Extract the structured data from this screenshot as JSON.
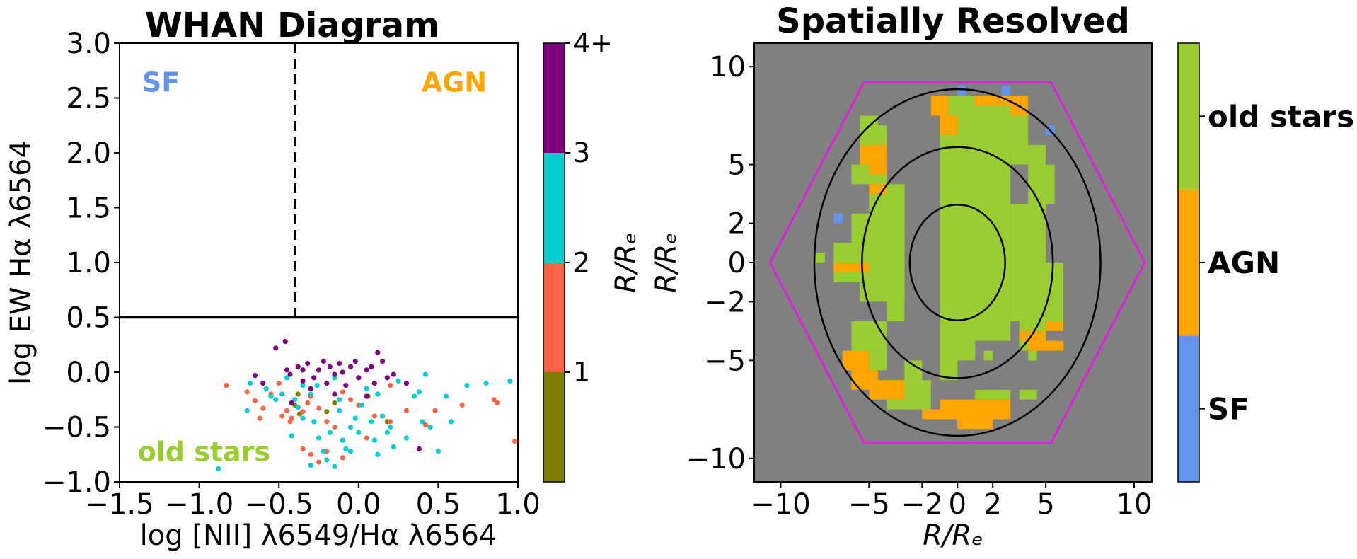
{
  "chart_data": [
    {
      "type": "scatter",
      "title": "WHAN Diagram",
      "xlabel": "log [NII] λ6549/Hα λ6564",
      "ylabel": "log EW Hα λ6564",
      "xlim": [
        -1.5,
        1.0
      ],
      "ylim": [
        -1.0,
        3.0
      ],
      "xticks": [
        -1.5,
        -1.0,
        -0.5,
        0.0,
        0.5,
        1.0
      ],
      "xtick_labels": [
        "−1.5",
        "−1.0",
        "−0.5",
        "0.0",
        "0.5",
        "1.0"
      ],
      "yticks": [
        -1.0,
        -0.5,
        0.0,
        0.5,
        1.0,
        1.5,
        2.0,
        2.5,
        3.0
      ],
      "ytick_labels": [
        "−1.0",
        "−0.5",
        "0.0",
        "0.5",
        "1.0",
        "1.5",
        "2.0",
        "2.5",
        "3.0"
      ],
      "dividers": {
        "vertical_x": -0.4,
        "horizontal_y": 0.5
      },
      "region_labels": [
        {
          "text": "SF",
          "x": -1.24,
          "y": 2.65,
          "color": "#6495ED"
        },
        {
          "text": "AGN",
          "x": 0.6,
          "y": 2.65,
          "color": "#FFA500"
        },
        {
          "text": "old stars",
          "x": -0.97,
          "y": -0.72,
          "color": "#9ACD32"
        }
      ],
      "colorbar": {
        "label": "R/Rₑ",
        "ticks": [
          "1",
          "2",
          "3",
          "4+"
        ],
        "bins": [
          {
            "range": "0-1",
            "color": "#808000"
          },
          {
            "range": "1-2",
            "color": "#FF6347"
          },
          {
            "range": "2-3",
            "color": "#00CED1"
          },
          {
            "range": "3-4+",
            "color": "#800080"
          }
        ]
      },
      "series": [
        {
          "name": "0-1 R/Re",
          "color": "#808000",
          "points": [
            [
              -0.37,
              -0.38
            ],
            [
              -0.4,
              -0.3
            ],
            [
              -0.15,
              -0.28
            ],
            [
              0.06,
              -0.22
            ],
            [
              -0.2,
              -0.36
            ],
            [
              0.18,
              -0.45
            ],
            [
              -0.38,
              -0.2
            ]
          ]
        },
        {
          "name": "1-2 R/Re",
          "color": "#FF6347",
          "points": [
            [
              -0.83,
              -0.12
            ],
            [
              -0.7,
              -0.18
            ],
            [
              -0.65,
              -0.26
            ],
            [
              -0.6,
              -0.33
            ],
            [
              -0.62,
              -0.42
            ],
            [
              -0.5,
              -0.1
            ],
            [
              -0.48,
              -0.4
            ],
            [
              -0.45,
              -0.35
            ],
            [
              -0.43,
              -0.45
            ],
            [
              -0.35,
              -0.36
            ],
            [
              -0.3,
              -0.22
            ],
            [
              -0.25,
              -0.33
            ],
            [
              -0.2,
              -0.45
            ],
            [
              -0.15,
              -0.5
            ],
            [
              -0.1,
              -0.18
            ],
            [
              -0.05,
              -0.25
            ],
            [
              0.0,
              -0.3
            ],
            [
              0.05,
              -0.6
            ],
            [
              0.1,
              -0.4
            ],
            [
              0.2,
              -0.45
            ],
            [
              0.3,
              -0.35
            ],
            [
              -0.35,
              -0.7
            ],
            [
              -0.3,
              -0.75
            ],
            [
              -0.2,
              -0.72
            ],
            [
              -0.1,
              -0.78
            ],
            [
              0.2,
              -0.12
            ],
            [
              0.65,
              -0.3
            ],
            [
              0.85,
              -0.25
            ],
            [
              0.87,
              -0.28
            ],
            [
              0.98,
              -0.63
            ],
            [
              0.48,
              -0.35
            ],
            [
              0.0,
              -0.05
            ],
            [
              -0.55,
              -0.2
            ],
            [
              -0.42,
              -0.42
            ],
            [
              -0.32,
              -0.28
            ],
            [
              -0.25,
              -0.82
            ],
            [
              0.42,
              -0.48
            ]
          ]
        },
        {
          "name": "2-3 R/Re",
          "color": "#00CED1",
          "points": [
            [
              -0.88,
              -0.88
            ],
            [
              -0.7,
              -0.35
            ],
            [
              -0.68,
              -0.1
            ],
            [
              -0.58,
              -0.15
            ],
            [
              -0.55,
              -0.22
            ],
            [
              -0.52,
              -0.25
            ],
            [
              -0.48,
              -0.2
            ],
            [
              -0.45,
              -0.05
            ],
            [
              -0.4,
              -0.25
            ],
            [
              -0.38,
              -0.32
            ],
            [
              -0.35,
              -0.12
            ],
            [
              -0.3,
              -0.2
            ],
            [
              -0.28,
              -0.45
            ],
            [
              -0.25,
              -0.6
            ],
            [
              -0.22,
              -0.72
            ],
            [
              -0.2,
              -0.8
            ],
            [
              -0.18,
              -0.55
            ],
            [
              -0.15,
              -0.05
            ],
            [
              -0.12,
              -0.35
            ],
            [
              -0.1,
              -0.62
            ],
            [
              -0.08,
              -0.7
            ],
            [
              -0.05,
              -0.5
            ],
            [
              -0.02,
              -0.42
            ],
            [
              0.0,
              -0.55
            ],
            [
              0.02,
              -0.3
            ],
            [
              0.05,
              -0.15
            ],
            [
              0.08,
              -0.45
            ],
            [
              0.1,
              -0.62
            ],
            [
              0.12,
              -0.2
            ],
            [
              0.15,
              -0.4
            ],
            [
              0.18,
              -0.55
            ],
            [
              0.2,
              -0.5
            ],
            [
              0.25,
              -0.08
            ],
            [
              0.3,
              -0.6
            ],
            [
              0.35,
              -0.22
            ],
            [
              0.38,
              -0.18
            ],
            [
              0.4,
              -0.45
            ],
            [
              0.42,
              -0.02
            ],
            [
              0.45,
              -0.5
            ],
            [
              0.5,
              -0.72
            ],
            [
              0.55,
              -0.22
            ],
            [
              0.58,
              -0.45
            ],
            [
              0.68,
              -0.12
            ],
            [
              0.8,
              -0.1
            ],
            [
              0.95,
              -0.08
            ],
            [
              -0.3,
              -0.85
            ],
            [
              -0.15,
              -0.86
            ],
            [
              -0.05,
              -0.72
            ],
            [
              0.12,
              -0.75
            ],
            [
              0.22,
              -0.68
            ],
            [
              -0.42,
              -0.58
            ],
            [
              -0.35,
              -0.42
            ],
            [
              -0.26,
              -0.12
            ],
            [
              -0.12,
              -0.25
            ]
          ]
        },
        {
          "name": "3-4+ R/Re",
          "color": "#800080",
          "points": [
            [
              -0.65,
              -0.03
            ],
            [
              -0.6,
              -0.1
            ],
            [
              -0.52,
              0.22
            ],
            [
              -0.46,
              0.28
            ],
            [
              -0.45,
              0.02
            ],
            [
              -0.43,
              -0.02
            ],
            [
              -0.38,
              0.05
            ],
            [
              -0.35,
              -0.08
            ],
            [
              -0.32,
              0.08
            ],
            [
              -0.3,
              -0.15
            ],
            [
              -0.28,
              -0.05
            ],
            [
              -0.25,
              0.02
            ],
            [
              -0.22,
              0.1
            ],
            [
              -0.2,
              -0.1
            ],
            [
              -0.18,
              0.05
            ],
            [
              -0.15,
              -0.02
            ],
            [
              -0.12,
              0.08
            ],
            [
              -0.1,
              0.0
            ],
            [
              -0.08,
              -0.12
            ],
            [
              -0.05,
              0.05
            ],
            [
              -0.02,
              0.1
            ],
            [
              0.0,
              -0.05
            ],
            [
              0.05,
              0.02
            ],
            [
              0.08,
              0.05
            ],
            [
              0.1,
              -0.1
            ],
            [
              0.12,
              0.18
            ],
            [
              0.15,
              0.1
            ],
            [
              0.18,
              -0.05
            ],
            [
              0.22,
              -0.02
            ],
            [
              0.05,
              -0.22
            ],
            [
              0.38,
              -0.7
            ],
            [
              -0.42,
              -0.28
            ],
            [
              0.3,
              -0.1
            ],
            [
              -0.15,
              -0.2
            ],
            [
              -0.35,
              0.02
            ]
          ]
        }
      ]
    },
    {
      "type": "heatmap",
      "title": "Spatially Resolved",
      "xlabel": "R/Rₑ",
      "ylabel": "R/Rₑ",
      "xlim": [
        -11.5,
        11
      ],
      "ylim": [
        -11.2,
        11.2
      ],
      "xticks": [
        -10,
        -5,
        -2,
        0,
        2,
        5,
        10
      ],
      "xtick_labels": [
        "−10",
        "−5",
        "−2",
        "0",
        "2",
        "5",
        "10"
      ],
      "yticks": [
        -10,
        -5,
        -2,
        0,
        2,
        5,
        10
      ],
      "ytick_labels": [
        "−10",
        "−5",
        "−2",
        "0",
        "2",
        "5",
        "10"
      ],
      "background_color": "#808080",
      "hexagon_color": "#E020E0",
      "hexagon": [
        [
          -10.6,
          0
        ],
        [
          -5.3,
          -9.2
        ],
        [
          5.3,
          -9.2
        ],
        [
          10.6,
          0
        ],
        [
          5.3,
          9.2
        ],
        [
          -5.3,
          9.2
        ]
      ],
      "ellipses_re": [
        1,
        2,
        3
      ],
      "colorbar": {
        "categories": [
          {
            "label": "SF",
            "color": "#6495ED"
          },
          {
            "label": "AGN",
            "color": "#FFA500"
          },
          {
            "label": "old stars",
            "color": "#9ACD32"
          }
        ]
      },
      "regions": {
        "old stars": [
          [
            -3,
            -3,
            4,
            7
          ],
          [
            -2,
            -2,
            3,
            8
          ],
          [
            -1,
            3,
            -4,
            8.5
          ],
          [
            -4,
            -3,
            -3,
            3
          ],
          [
            -5.5,
            -3,
            -2,
            2
          ],
          [
            -7,
            -4,
            -1,
            1
          ],
          [
            -6,
            -3,
            1,
            2.5
          ],
          [
            -5,
            -3,
            2.5,
            4
          ],
          [
            -6,
            -4,
            4,
            5
          ],
          [
            -5.5,
            -4.5,
            5,
            7.5
          ],
          [
            -4.5,
            -4,
            6,
            7
          ],
          [
            0,
            2,
            7.5,
            8
          ],
          [
            2,
            4,
            6,
            7.5
          ],
          [
            3,
            5,
            5,
            6
          ],
          [
            4,
            5.5,
            3,
            5
          ],
          [
            3,
            5,
            0,
            3
          ],
          [
            3,
            6,
            -3,
            0
          ],
          [
            3.5,
            5,
            -4.5,
            -3
          ],
          [
            4,
            4.5,
            -5,
            -4.5
          ],
          [
            -8,
            -7.5,
            0,
            0.5
          ],
          [
            -6,
            -4,
            -4.5,
            -3
          ],
          [
            -5,
            -4,
            -5.5,
            -4.5
          ],
          [
            -3,
            -2,
            -6,
            -5
          ],
          [
            1,
            3,
            -7,
            -6.5
          ],
          [
            3.5,
            4.5,
            -7,
            -6.5
          ],
          [
            -4,
            -1.5,
            -7.5,
            -6
          ],
          [
            -1.5,
            -2.5,
            -6,
            -5
          ],
          [
            -1,
            1,
            -5,
            -4
          ],
          [
            1.5,
            2,
            -5,
            -4.5
          ],
          [
            -1,
            0,
            -6,
            -5
          ],
          [
            -4.5,
            -3,
            -7,
            -6
          ]
        ],
        "AGN": [
          [
            -5.5,
            -4,
            5,
            6
          ],
          [
            -5,
            -4,
            4.5,
            5
          ],
          [
            -5,
            -4,
            3.5,
            4
          ],
          [
            -7,
            -5,
            -0.5,
            0
          ],
          [
            -6.5,
            -5,
            -5.5,
            -4.5
          ],
          [
            -6,
            -4.5,
            -6.5,
            -5.5
          ],
          [
            -5,
            -3,
            -7,
            -6
          ],
          [
            -1.5,
            -0.5,
            7.5,
            8.5
          ],
          [
            -1,
            0,
            6.5,
            7.5
          ],
          [
            1,
            4,
            8,
            8.5
          ],
          [
            3,
            4,
            7.5,
            8
          ],
          [
            3.5,
            5,
            -4,
            -3.5
          ],
          [
            4,
            6,
            -4.5,
            -4
          ],
          [
            5,
            6,
            -3.5,
            -3
          ],
          [
            -1,
            3,
            -8,
            -7
          ],
          [
            0,
            2,
            -8.5,
            -8
          ],
          [
            -2,
            0,
            -8,
            -7.5
          ],
          [
            2.5,
            3,
            -8,
            -7.5
          ],
          [
            -6.5,
            -6,
            -5,
            -4.5
          ]
        ],
        "SF": [
          [
            0,
            0.5,
            8.5,
            9
          ],
          [
            2.5,
            3,
            8.5,
            9
          ],
          [
            5,
            5.5,
            6.5,
            7
          ],
          [
            -7,
            -6.5,
            2,
            2.5
          ]
        ]
      }
    }
  ]
}
